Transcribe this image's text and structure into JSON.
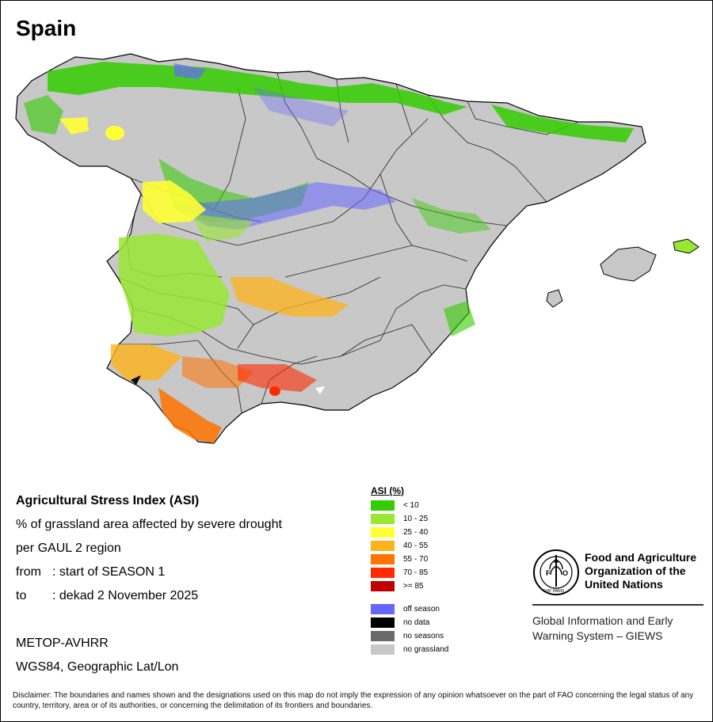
{
  "map": {
    "title": "Spain",
    "colors": {
      "land": "#c8c8c8",
      "border": "#000000",
      "sea": "#ffffff"
    }
  },
  "info": {
    "title": "Agricultural Stress Index (ASI)",
    "line1": "% of grassland area affected by severe drought",
    "line2": "per GAUL 2 region",
    "from_label": "from",
    "from_value": ": start of SEASON 1",
    "to_label": "to",
    "to_value": ": dekad 2 November 2025",
    "sensor": "METOP-AVHRR",
    "projection": "WGS84, Geographic Lat/Lon"
  },
  "legend": {
    "title": "ASI (%)",
    "classes": [
      {
        "label": "< 10",
        "color": "#33cc00"
      },
      {
        "label": "10 - 25",
        "color": "#99e633"
      },
      {
        "label": "25 - 40",
        "color": "#ffff33"
      },
      {
        "label": "40 - 55",
        "color": "#ffb31a"
      },
      {
        "label": "55 - 70",
        "color": "#ff7300"
      },
      {
        "label": "70 - 85",
        "color": "#ff2a00"
      },
      {
        "label": ">= 85",
        "color": "#c00000"
      }
    ],
    "other": [
      {
        "label": "off season",
        "color": "#6666ff"
      },
      {
        "label": "no data",
        "color": "#000000"
      },
      {
        "label": "no seasons",
        "color": "#6a6a6a"
      },
      {
        "label": "no grassland",
        "color": "#c8c8c8"
      }
    ]
  },
  "organization": {
    "name_line1": "Food and Agriculture",
    "name_line2": "Organization of the",
    "name_line3": "United Nations",
    "logo_text": "FIAT PANIS",
    "system_line1": "Global Information and Early",
    "system_line2": "Warning System – GIEWS"
  },
  "disclaimer": "Disclaimer: The boundaries and names shown and the designations used on this map do not imply the expression of any opinion whatsoever on the part of FAO concerning the legal status of any country, territory, area or of its authorities, or concerning the delimitation of its frontiers and boundaries."
}
